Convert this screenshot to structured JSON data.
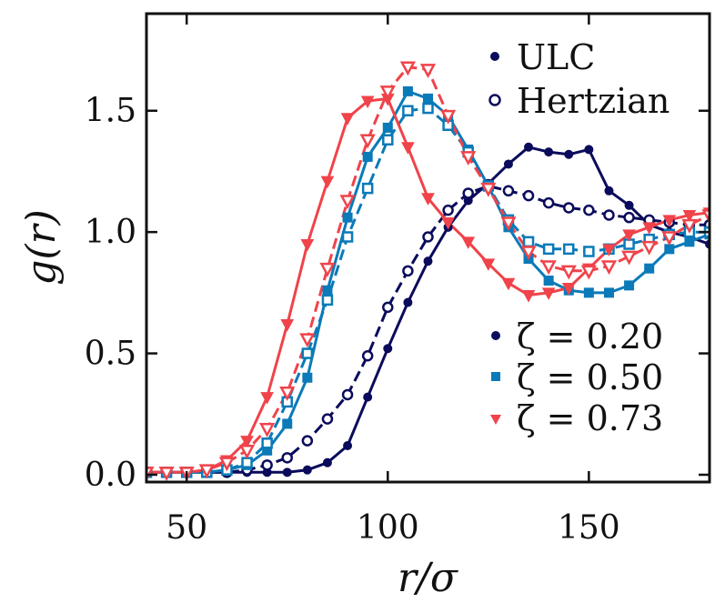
{
  "chart_data": {
    "type": "line",
    "xlabel": "r/σ",
    "ylabel": "g(r)",
    "xlim": [
      40,
      180
    ],
    "ylim": [
      -0.03,
      1.9
    ],
    "xticks": [
      50,
      100,
      150
    ],
    "yticks": [
      0.0,
      0.5,
      1.0,
      1.5
    ],
    "xtick_labels": [
      "50",
      "100",
      "150"
    ],
    "ytick_labels": [
      "0.0",
      "0.5",
      "1.0",
      "1.5"
    ],
    "grid": false,
    "legend_model": {
      "placement": "top-right",
      "entries": [
        {
          "label": "ULC",
          "marker": "filled-circle"
        },
        {
          "label": "Hertzian",
          "marker": "open-circle"
        }
      ]
    },
    "legend_zeta": {
      "placement": "bottom-right",
      "entries": [
        {
          "label": "ζ = 0.20",
          "marker": "circle",
          "color": "#0b0b5c"
        },
        {
          "label": "ζ = 0.50",
          "marker": "square",
          "color": "#0a7ab8"
        },
        {
          "label": "ζ = 0.73",
          "marker": "triangle-down",
          "color": "#f0434a"
        }
      ]
    },
    "series": [
      {
        "id": "s020_ulc",
        "zeta": "0.20",
        "model": "ULC",
        "color": "#0b0b5c",
        "marker": "circle",
        "filled": true,
        "dashed": false,
        "x": [
          40,
          45,
          50,
          55,
          60,
          65,
          70,
          75,
          80,
          85,
          90,
          95,
          100,
          105,
          110,
          115,
          120,
          125,
          130,
          135,
          140,
          145,
          150,
          155,
          160,
          165,
          170,
          175,
          180
        ],
        "y": [
          0.01,
          0.01,
          0.01,
          0.01,
          0.01,
          0.01,
          0.01,
          0.01,
          0.02,
          0.05,
          0.12,
          0.32,
          0.52,
          0.71,
          0.88,
          1.02,
          1.13,
          1.2,
          1.28,
          1.35,
          1.33,
          1.32,
          1.34,
          1.17,
          1.11,
          1.03,
          1.0,
          0.98,
          0.95
        ]
      },
      {
        "id": "s020_hertz",
        "zeta": "0.20",
        "model": "Hertzian",
        "color": "#0b0b5c",
        "marker": "circle",
        "filled": false,
        "dashed": true,
        "x": [
          40,
          45,
          50,
          55,
          60,
          65,
          70,
          75,
          80,
          85,
          90,
          95,
          100,
          105,
          110,
          115,
          120,
          125,
          130,
          135,
          140,
          145,
          150,
          155,
          160,
          165,
          170,
          175,
          180
        ],
        "y": [
          0.01,
          0.01,
          0.01,
          0.01,
          0.01,
          0.02,
          0.04,
          0.07,
          0.14,
          0.23,
          0.33,
          0.49,
          0.69,
          0.84,
          0.98,
          1.09,
          1.16,
          1.19,
          1.17,
          1.15,
          1.12,
          1.1,
          1.09,
          1.07,
          1.06,
          1.05,
          1.04,
          1.03,
          1.03
        ]
      },
      {
        "id": "s050_ulc",
        "zeta": "0.50",
        "model": "ULC",
        "color": "#0a7ab8",
        "marker": "square",
        "filled": true,
        "dashed": false,
        "x": [
          40,
          45,
          50,
          55,
          60,
          65,
          70,
          75,
          80,
          85,
          90,
          95,
          100,
          105,
          110,
          115,
          120,
          125,
          130,
          135,
          140,
          145,
          150,
          155,
          160,
          165,
          170,
          175,
          180
        ],
        "y": [
          0.01,
          0.01,
          0.01,
          0.01,
          0.02,
          0.04,
          0.1,
          0.21,
          0.4,
          0.76,
          1.06,
          1.31,
          1.43,
          1.58,
          1.55,
          1.48,
          1.34,
          1.19,
          1.02,
          0.89,
          0.8,
          0.76,
          0.75,
          0.75,
          0.78,
          0.85,
          0.93,
          0.96,
          0.99
        ]
      },
      {
        "id": "s050_hertz",
        "zeta": "0.50",
        "model": "Hertzian",
        "color": "#0a7ab8",
        "marker": "square",
        "filled": false,
        "dashed": true,
        "x": [
          40,
          45,
          50,
          55,
          60,
          65,
          70,
          75,
          80,
          85,
          90,
          95,
          100,
          105,
          110,
          115,
          120,
          125,
          130,
          135,
          140,
          145,
          150,
          155,
          160,
          165,
          170,
          175,
          180
        ],
        "y": [
          0.01,
          0.01,
          0.01,
          0.01,
          0.02,
          0.05,
          0.13,
          0.3,
          0.5,
          0.72,
          0.98,
          1.18,
          1.38,
          1.5,
          1.51,
          1.44,
          1.33,
          1.19,
          1.05,
          0.96,
          0.93,
          0.93,
          0.92,
          0.93,
          0.95,
          0.97,
          0.99,
          1.0,
          1.0
        ]
      },
      {
        "id": "s073_ulc",
        "zeta": "0.73",
        "model": "ULC",
        "color": "#f0434a",
        "marker": "triangle-down",
        "filled": true,
        "dashed": false,
        "x": [
          40,
          45,
          50,
          55,
          60,
          65,
          70,
          75,
          80,
          85,
          90,
          95,
          100,
          105,
          110,
          115,
          120,
          125,
          130,
          135,
          140,
          145,
          150,
          155,
          160,
          165,
          170,
          175,
          180
        ],
        "y": [
          0.01,
          0.01,
          0.01,
          0.02,
          0.06,
          0.14,
          0.32,
          0.62,
          0.95,
          1.21,
          1.47,
          1.54,
          1.55,
          1.35,
          1.14,
          1.04,
          0.96,
          0.87,
          0.79,
          0.74,
          0.75,
          0.77,
          0.85,
          0.93,
          0.99,
          1.02,
          1.05,
          1.07,
          1.08
        ]
      },
      {
        "id": "s073_hertz",
        "zeta": "0.73",
        "model": "Hertzian",
        "color": "#f0434a",
        "marker": "triangle-down",
        "filled": false,
        "dashed": true,
        "x": [
          40,
          45,
          50,
          55,
          60,
          65,
          70,
          75,
          80,
          85,
          90,
          95,
          100,
          105,
          110,
          115,
          120,
          125,
          130,
          135,
          140,
          145,
          150,
          155,
          160,
          165,
          170,
          175,
          180
        ],
        "y": [
          0.01,
          0.01,
          0.01,
          0.02,
          0.05,
          0.1,
          0.19,
          0.34,
          0.56,
          0.85,
          1.13,
          1.38,
          1.58,
          1.68,
          1.67,
          1.48,
          1.31,
          1.18,
          1.04,
          0.92,
          0.86,
          0.84,
          0.84,
          0.86,
          0.9,
          0.94,
          0.98,
          1.03,
          1.07
        ]
      }
    ]
  }
}
